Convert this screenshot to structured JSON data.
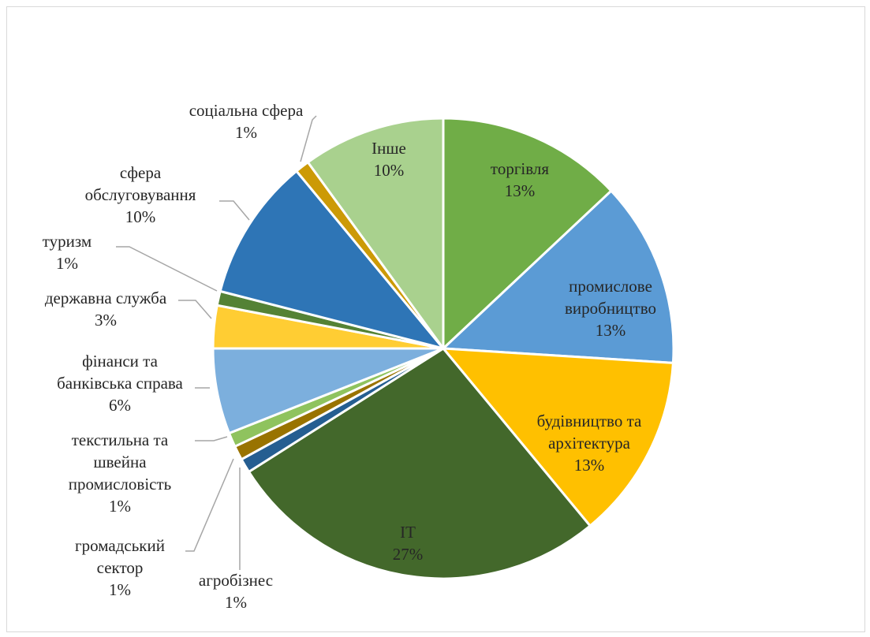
{
  "chart_data": {
    "type": "pie",
    "title": "",
    "start_angle_deg": 0,
    "direction": "clockwise",
    "slices": [
      {
        "label": [
          "торгівля"
        ],
        "pct_label": "13%",
        "value": 13,
        "color": "#70ad47",
        "label_pos": "inside"
      },
      {
        "label": [
          "промислове",
          "виробництво"
        ],
        "pct_label": "13%",
        "value": 13,
        "color": "#5b9bd5",
        "label_pos": "inside"
      },
      {
        "label": [
          "будівництво та",
          "архітектура"
        ],
        "pct_label": "13%",
        "value": 13,
        "color": "#ffc000",
        "label_pos": "inside"
      },
      {
        "label": [
          "IT"
        ],
        "pct_label": "27%",
        "value": 27,
        "color": "#43682b",
        "label_pos": "inside"
      },
      {
        "label": [
          "агробізнес"
        ],
        "pct_label": "1%",
        "value": 1,
        "color": "#255e91",
        "label_pos": "outside"
      },
      {
        "label": [
          "громадський",
          "сектор"
        ],
        "pct_label": "1%",
        "value": 1,
        "color": "#997300",
        "label_pos": "outside"
      },
      {
        "label": [
          "текстильна та",
          "швейна",
          "промисловість"
        ],
        "pct_label": "1%",
        "value": 1,
        "color": "#8fc35e",
        "label_pos": "outside"
      },
      {
        "label": [
          "фінанси та",
          "банківська справа"
        ],
        "pct_label": "6%",
        "value": 6,
        "color": "#7cafdd",
        "label_pos": "outside"
      },
      {
        "label": [
          "державна служба"
        ],
        "pct_label": "3%",
        "value": 3,
        "color": "#ffcd33",
        "label_pos": "outside"
      },
      {
        "label": [
          "туризм"
        ],
        "pct_label": "1%",
        "value": 1,
        "color": "#548235",
        "label_pos": "outside"
      },
      {
        "label": [
          "сфера",
          "обслуговування"
        ],
        "pct_label": "10%",
        "value": 10,
        "color": "#2e75b6",
        "label_pos": "outside"
      },
      {
        "label": [
          "соціальна сфера"
        ],
        "pct_label": "1%",
        "value": 1,
        "color": "#cc9a06",
        "label_pos": "outside"
      },
      {
        "label": [
          "Інше"
        ],
        "pct_label": "10%",
        "value": 10,
        "color": "#a9d18e",
        "label_pos": "inside"
      }
    ]
  }
}
